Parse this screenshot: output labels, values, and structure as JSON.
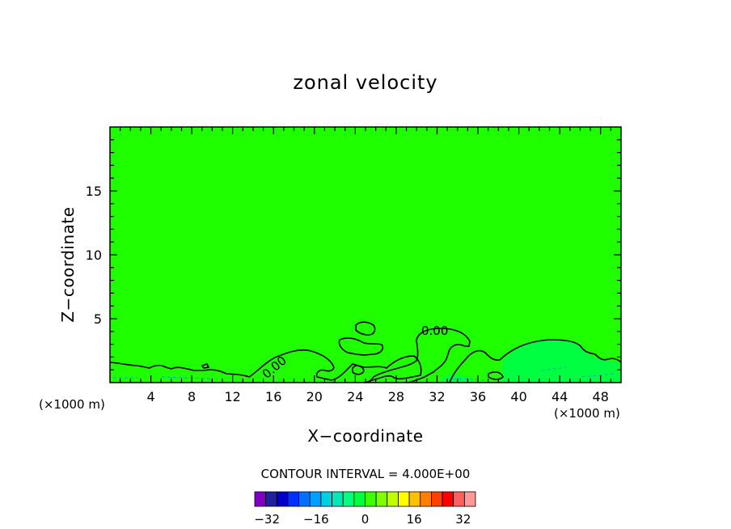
{
  "chart_data": {
    "type": "heatmap",
    "title": "zonal velocity",
    "xlabel": "X−coordinate",
    "ylabel": "Z−coordinate",
    "x_unit": "(×1000 m)",
    "xlim": [
      0,
      50
    ],
    "ylim": [
      0,
      20
    ],
    "x_ticks": [
      4,
      8,
      12,
      16,
      20,
      24,
      28,
      32,
      36,
      40,
      44,
      48
    ],
    "y_ticks": [
      5,
      10,
      15
    ],
    "contour_interval_label": "CONTOUR INTERVAL = 4.000E+00",
    "contour_interval": 4,
    "contour_labels": [
      "0.00",
      "0.00"
    ],
    "field_value_dominant": 0,
    "colorbar": {
      "levels": [
        -36,
        -32,
        -28,
        -24,
        -20,
        -16,
        -12,
        -8,
        -4,
        0,
        4,
        8,
        12,
        16,
        20,
        24,
        28,
        32,
        36
      ],
      "tick_labels": [
        "−32",
        "−16",
        "0",
        "16",
        "32"
      ],
      "tick_values": [
        -32,
        -16,
        0,
        16,
        32
      ],
      "colors": [
        "#8000c0",
        "#2020a0",
        "#0000c8",
        "#0030ff",
        "#0070ff",
        "#00a0ff",
        "#00d0e0",
        "#00e8b8",
        "#00ff80",
        "#00ff40",
        "#40ff00",
        "#80ff00",
        "#c0ff00",
        "#ffff00",
        "#ffc000",
        "#ff8000",
        "#ff4000",
        "#ff0000",
        "#ff6060",
        "#ff9898"
      ]
    },
    "field_color": "#1fff00",
    "near_zero_positive_color": "#00ff40"
  }
}
